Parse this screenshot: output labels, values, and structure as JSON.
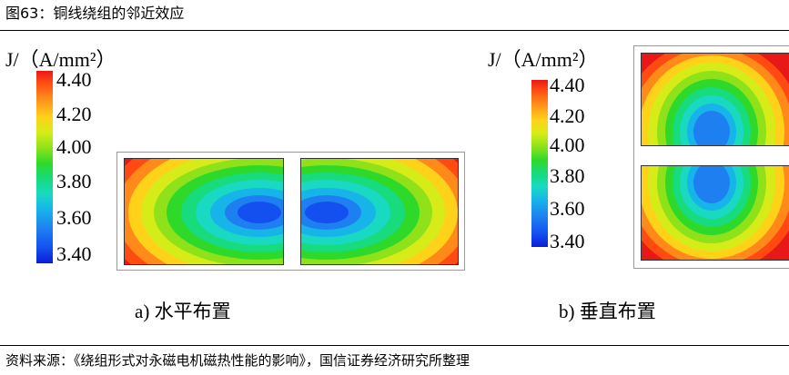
{
  "figure_title": "图63：铜线绕组的邻近效应",
  "legend": {
    "label": "J/（A/mm²）",
    "ticks": [
      "4.40",
      "4.20",
      "4.00",
      "3.80",
      "3.60",
      "3.40"
    ]
  },
  "panels": [
    {
      "caption": "a)  水平布置"
    },
    {
      "caption": "b)  垂直布置"
    }
  ],
  "source": "资料来源：《绕组形式对永磁电机磁热性能的影响》，国信证券经济研究所整理",
  "colors": {
    "max": "#e81818",
    "orange": "#ff8a1a",
    "yellow": "#ffd21a",
    "green": "#2fd92a",
    "cyan": "#19d9c2",
    "blue": "#1e80f0",
    "min": "#0a1cd8"
  }
}
